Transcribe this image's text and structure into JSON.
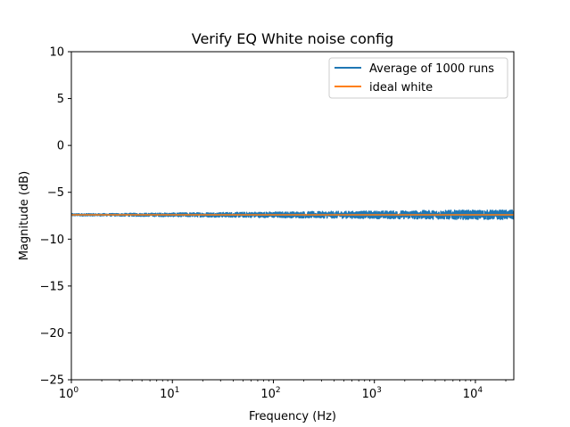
{
  "chart_data": {
    "type": "line",
    "title": "Verify EQ White noise config",
    "xlabel": "Frequency (Hz)",
    "ylabel": "Magnitude (dB)",
    "xscale": "log",
    "xlim": [
      1,
      24000
    ],
    "ylim": [
      -25,
      10
    ],
    "yticks": [
      10,
      5,
      0,
      -5,
      -10,
      -15,
      -20,
      -25
    ],
    "ytick_labels": [
      "10",
      "5",
      "0",
      "−5",
      "−10",
      "−15",
      "−20",
      "−25"
    ],
    "xticks": [
      {
        "base": "10",
        "exp": "0"
      },
      {
        "base": "10",
        "exp": "1"
      },
      {
        "base": "10",
        "exp": "2"
      },
      {
        "base": "10",
        "exp": "3"
      },
      {
        "base": "10",
        "exp": "4"
      }
    ],
    "legend_position": "upper-right",
    "series": [
      {
        "name": "Average of 1000 runs",
        "color": "#1f77b4",
        "approx_level_db": -7.4,
        "approx_spread_db": 0.5
      },
      {
        "name": "ideal white",
        "color": "#ff7f0e",
        "level_db": -7.4
      }
    ]
  }
}
